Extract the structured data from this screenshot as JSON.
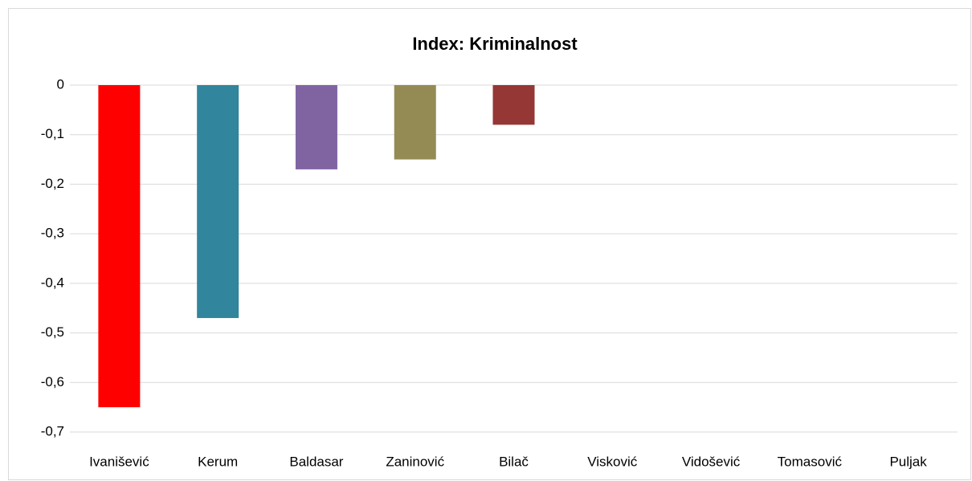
{
  "chart_data": {
    "type": "bar",
    "title": "Index: Kriminalnost",
    "categories": [
      "Ivanišević",
      "Kerum",
      "Baldasar",
      "Zaninović",
      "Bilač",
      "Visković",
      "Vidošević",
      "Tomasović",
      "Puljak"
    ],
    "values": [
      -0.65,
      -0.47,
      -0.17,
      -0.15,
      -0.08,
      0,
      0,
      0,
      0
    ],
    "colors": [
      "#ff0000",
      "#31859c",
      "#8064a2",
      "#948a54",
      "#953735",
      null,
      null,
      null,
      null
    ],
    "ylim": [
      -0.7,
      0
    ],
    "yticks": [
      0,
      {
        "value": -0.1,
        "label": "-0,1"
      },
      {
        "value": -0.2,
        "label": "-0,2"
      },
      {
        "value": -0.3,
        "label": "-0,3"
      },
      {
        "value": -0.4,
        "label": "-0,4"
      },
      {
        "value": -0.5,
        "label": "-0,5"
      },
      {
        "value": -0.6,
        "label": "-0,6"
      },
      {
        "value": -0.7,
        "label": "-0,7"
      }
    ],
    "grid": true
  }
}
